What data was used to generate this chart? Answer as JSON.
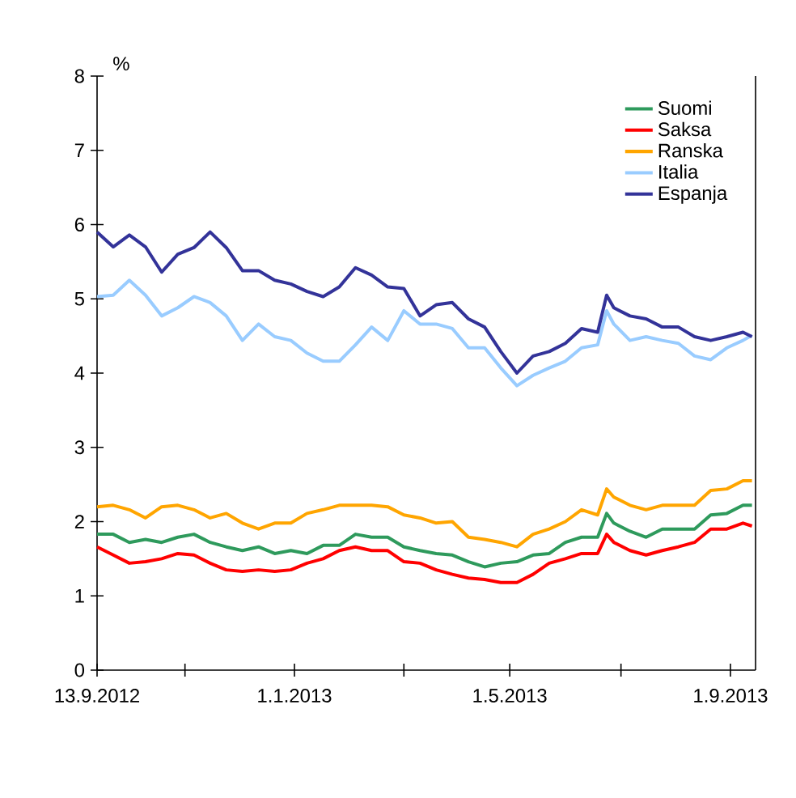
{
  "chart_data": {
    "type": "line",
    "ylabel": "%",
    "x": [
      "2012-09-13",
      "2012-09-22",
      "2012-10-01",
      "2012-10-10",
      "2012-10-19",
      "2012-10-28",
      "2012-11-06",
      "2012-11-15",
      "2012-11-24",
      "2012-12-03",
      "2012-12-12",
      "2012-12-21",
      "2012-12-30",
      "2013-01-08",
      "2013-01-17",
      "2013-01-26",
      "2013-02-04",
      "2013-02-13",
      "2013-02-22",
      "2013-03-03",
      "2013-03-12",
      "2013-03-21",
      "2013-03-30",
      "2013-04-08",
      "2013-04-17",
      "2013-04-26",
      "2013-05-05",
      "2013-05-14",
      "2013-05-23",
      "2013-06-01",
      "2013-06-10",
      "2013-06-19",
      "2013-06-24",
      "2013-06-28",
      "2013-07-07",
      "2013-07-16",
      "2013-07-25",
      "2013-08-03",
      "2013-08-12",
      "2013-08-21",
      "2013-08-30",
      "2013-09-08",
      "2013-09-13"
    ],
    "series": [
      {
        "name": "Suomi",
        "color": "#2e9a5c",
        "values": [
          1.83,
          1.83,
          1.72,
          1.76,
          1.72,
          1.79,
          1.83,
          1.72,
          1.66,
          1.61,
          1.66,
          1.57,
          1.61,
          1.57,
          1.68,
          1.68,
          1.83,
          1.79,
          1.79,
          1.66,
          1.61,
          1.57,
          1.55,
          1.46,
          1.39,
          1.44,
          1.46,
          1.55,
          1.57,
          1.72,
          1.79,
          1.79,
          2.11,
          1.98,
          1.87,
          1.79,
          1.9,
          1.9,
          1.9,
          2.09,
          2.11,
          2.22,
          2.22
        ]
      },
      {
        "name": "Saksa",
        "color": "#ff0000",
        "values": [
          1.66,
          1.55,
          1.44,
          1.46,
          1.5,
          1.57,
          1.55,
          1.44,
          1.35,
          1.33,
          1.35,
          1.33,
          1.35,
          1.44,
          1.5,
          1.61,
          1.66,
          1.61,
          1.61,
          1.46,
          1.44,
          1.35,
          1.29,
          1.24,
          1.22,
          1.18,
          1.18,
          1.29,
          1.44,
          1.5,
          1.57,
          1.57,
          1.83,
          1.72,
          1.61,
          1.55,
          1.61,
          1.66,
          1.72,
          1.9,
          1.9,
          1.98,
          1.94
        ]
      },
      {
        "name": "Ranska",
        "color": "#ffa500",
        "values": [
          2.2,
          2.22,
          2.16,
          2.05,
          2.2,
          2.22,
          2.16,
          2.05,
          2.11,
          1.98,
          1.9,
          1.98,
          1.98,
          2.11,
          2.16,
          2.22,
          2.22,
          2.22,
          2.2,
          2.09,
          2.05,
          1.98,
          2.0,
          1.79,
          1.76,
          1.72,
          1.66,
          1.83,
          1.9,
          2.0,
          2.16,
          2.09,
          2.44,
          2.33,
          2.22,
          2.16,
          2.22,
          2.22,
          2.22,
          2.42,
          2.44,
          2.55,
          2.55
        ]
      },
      {
        "name": "Italia",
        "color": "#99ccff",
        "values": [
          5.03,
          5.05,
          5.25,
          5.05,
          4.77,
          4.88,
          5.03,
          4.95,
          4.77,
          4.44,
          4.66,
          4.49,
          4.44,
          4.27,
          4.16,
          4.16,
          4.38,
          4.62,
          4.44,
          4.84,
          4.66,
          4.66,
          4.6,
          4.34,
          4.34,
          4.07,
          3.83,
          3.97,
          4.07,
          4.16,
          4.34,
          4.38,
          4.84,
          4.66,
          4.44,
          4.49,
          4.44,
          4.4,
          4.23,
          4.18,
          4.34,
          4.44,
          4.51
        ]
      },
      {
        "name": "Espanja",
        "color": "#333399",
        "values": [
          5.9,
          5.7,
          5.86,
          5.7,
          5.36,
          5.6,
          5.69,
          5.9,
          5.69,
          5.38,
          5.38,
          5.25,
          5.2,
          5.1,
          5.03,
          5.16,
          5.42,
          5.32,
          5.16,
          5.14,
          4.77,
          4.92,
          4.95,
          4.73,
          4.62,
          4.29,
          4.0,
          4.23,
          4.29,
          4.4,
          4.6,
          4.55,
          5.05,
          4.88,
          4.77,
          4.73,
          4.62,
          4.62,
          4.49,
          4.44,
          4.49,
          4.55,
          4.49
        ]
      }
    ],
    "xlim": [
      "2012-09-13",
      "2013-09-15"
    ],
    "xticks": [
      {
        "value": "2012-09-13",
        "label": "13.9.2012"
      },
      {
        "value": "2012-11-01",
        "label": null
      },
      {
        "value": "2013-01-01",
        "label": "1.1.2013"
      },
      {
        "value": "2013-03-03",
        "label": null
      },
      {
        "value": "2013-05-01",
        "label": "1.5.2013"
      },
      {
        "value": "2013-07-02",
        "label": null
      },
      {
        "value": "2013-09-01",
        "label": "1.9.2013"
      }
    ],
    "ylim": [
      0,
      8
    ],
    "yticks": [
      0,
      1,
      2,
      3,
      4,
      5,
      6,
      7,
      8
    ],
    "legend": "top right"
  }
}
